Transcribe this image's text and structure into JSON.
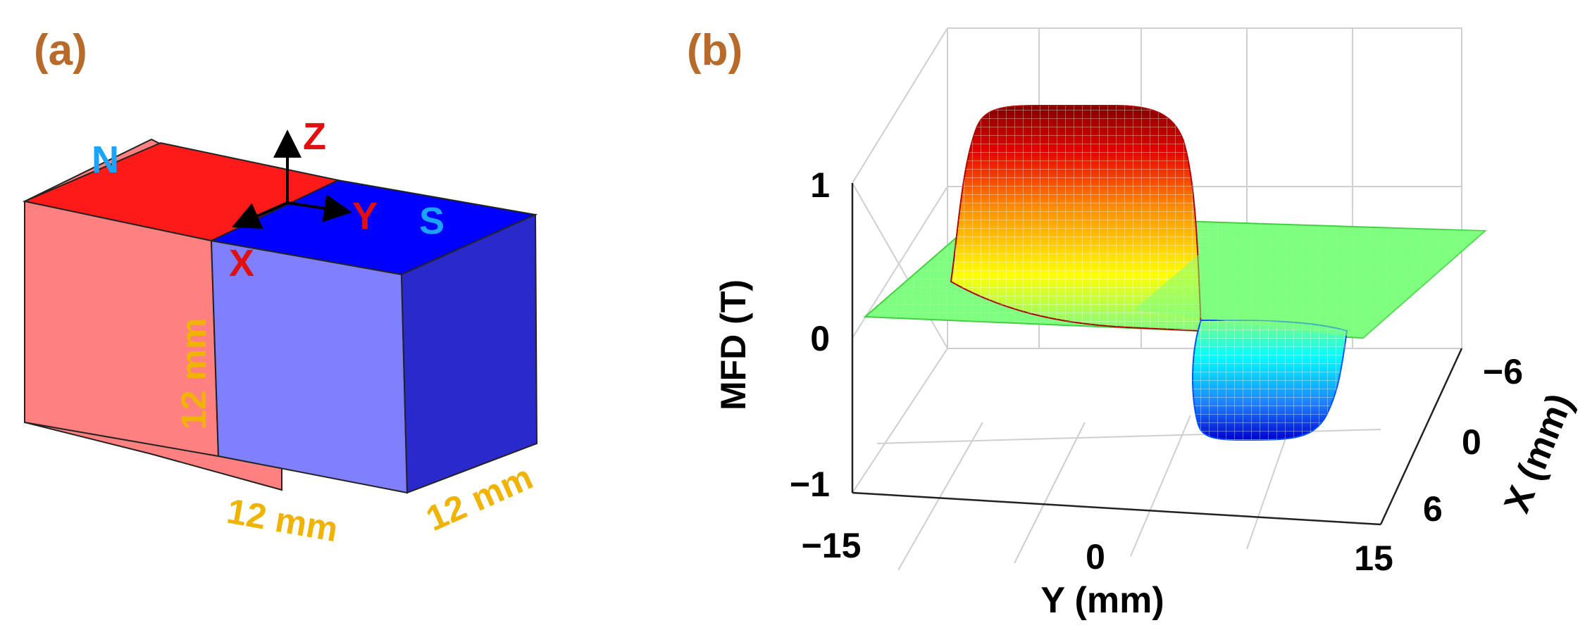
{
  "panel_a": {
    "label": "(a)",
    "north_pole": "N",
    "south_pole": "S",
    "axis_z": "Z",
    "axis_y": "Y",
    "axis_x": "X",
    "height_dim": "12 mm",
    "width_dim": "12 mm",
    "depth_dim": "12 mm",
    "colors": {
      "north_top": "#ff1a1a",
      "north_front": "#ff8080",
      "south_top": "#0000ff",
      "south_front": "#8080ff",
      "south_side": "#2a2acc",
      "dimension_text": "#f0b400",
      "pole_text": "#1aa3ff",
      "axis_text": "#e01010",
      "panel_label": "#b86a2a"
    }
  },
  "panel_b": {
    "label": "(b)",
    "z_axis_title": "MFD (T)",
    "y_axis_title": "Y (mm)",
    "x_axis_title": "X (mm)",
    "z_ticks": [
      "1",
      "0",
      "−1"
    ],
    "y_ticks": [
      "−15",
      "0",
      "15"
    ],
    "x_ticks": [
      "−6",
      "0",
      "6"
    ],
    "surface_peak_value": 1,
    "surface_trough_value": -1,
    "colormap": [
      "#00007f",
      "#0000ff",
      "#00ffff",
      "#7fff7f",
      "#ffff00",
      "#ff7f00",
      "#7f0000"
    ]
  }
}
